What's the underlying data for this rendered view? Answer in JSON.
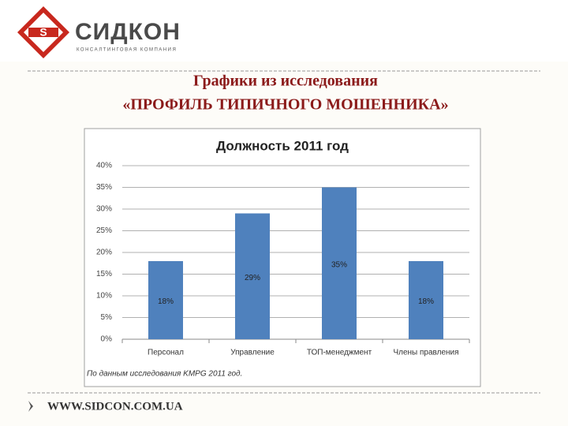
{
  "logo": {
    "name": "СИДКОН",
    "tagline": "КОНСАЛТИНГОВАЯ КОМПАНИЯ"
  },
  "slide_title": [
    "Графики из исследования",
    "«ПРОФИЛЬ ТИПИЧНОГО МОШЕННИКА»"
  ],
  "footer_url": "WWW.SIDCON.COM.UA",
  "chart_data": {
    "type": "bar",
    "title": "Должность  2011 год",
    "categories": [
      "Персонал",
      "Управление",
      "ТОП-менеджмент",
      "Члены правления"
    ],
    "values": [
      18,
      29,
      35,
      18
    ],
    "value_labels": [
      "18%",
      "29%",
      "35%",
      "18%"
    ],
    "color": "#4f81bd",
    "ylim": [
      0,
      40
    ],
    "yticks": [
      {
        "value": 0,
        "label": "0%"
      },
      {
        "value": 5,
        "label": "5%"
      },
      {
        "value": 10,
        "label": "10%"
      },
      {
        "value": 15,
        "label": "15%"
      },
      {
        "value": 20,
        "label": "20%"
      },
      {
        "value": 25,
        "label": "25%"
      },
      {
        "value": 30,
        "label": "30%"
      },
      {
        "value": 35,
        "label": "35%"
      },
      {
        "value": 40,
        "label": "40%"
      }
    ],
    "grid": true,
    "note": "По данным исследования KMPG 2011 год."
  }
}
